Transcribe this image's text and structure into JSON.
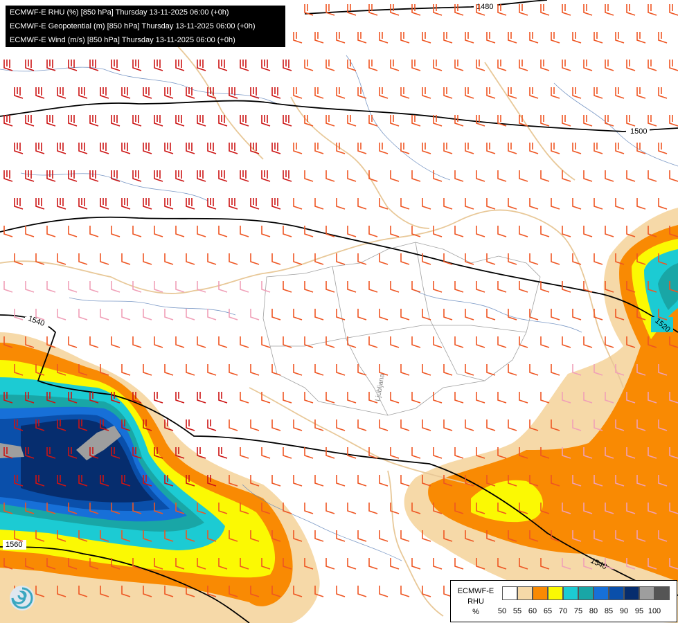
{
  "header": {
    "line1": "ECMWF-E RHU (%) [850 hPa] Thursday 13-11-2025 06:00 (+0h)",
    "line2": "ECMWF-E Geopotential (m) [850 hPa] Thursday 13-11-2025 06:00 (+0h)",
    "line3": "ECMWF-E Wind (m/s) [850 hPa] Thursday 13-11-2025 06:00 (+0h)"
  },
  "map": {
    "contour_labels": [
      "1480",
      "1500",
      "1520",
      "1540",
      "1540",
      "1560"
    ],
    "place_label": "Ljubljana"
  },
  "legend": {
    "line1": "ECMWF-E",
    "line2": "RHU",
    "line3": "%",
    "ticks": [
      "50",
      "55",
      "60",
      "65",
      "70",
      "75",
      "80",
      "85",
      "90",
      "95",
      "100"
    ],
    "colors": [
      "#ffffff",
      "#f6d9a8",
      "#f98a03",
      "#fbf903",
      "#1ccbd3",
      "#19a6a6",
      "#1770d8",
      "#0a4faa",
      "#062d6e",
      "#9e9e9e",
      "#555555"
    ]
  },
  "colors": {
    "wind_strong": "#cc1414",
    "wind_medium": "#ee5522",
    "wind_light": "#f0a0b8",
    "contour": "#000000",
    "border": "#e8c898",
    "river": "#5a7fb8"
  }
}
